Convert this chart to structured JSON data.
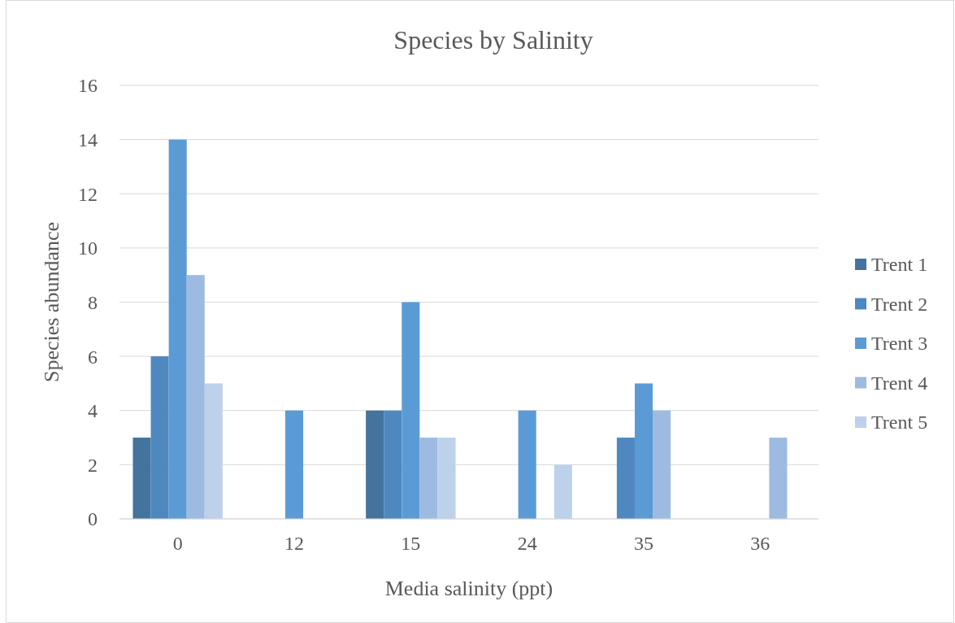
{
  "chart_data": {
    "type": "bar",
    "title": "Species by Salinity",
    "xlabel": "Media salinity (ppt)",
    "ylabel": "Species abundance",
    "categories": [
      "0",
      "12",
      "15",
      "24",
      "35",
      "36"
    ],
    "series": [
      {
        "name": "Trent 1",
        "color": "#44739e",
        "values": [
          3,
          0,
          4,
          0,
          0,
          0
        ]
      },
      {
        "name": "Trent 2",
        "color": "#4e88bf",
        "values": [
          6,
          0,
          4,
          0,
          3,
          0
        ]
      },
      {
        "name": "Trent 3",
        "color": "#5b9bd5",
        "values": [
          14,
          4,
          8,
          4,
          5,
          0
        ]
      },
      {
        "name": "Trent 4",
        "color": "#9dbbe0",
        "values": [
          9,
          0,
          3,
          0,
          4,
          3
        ]
      },
      {
        "name": "Trent 5",
        "color": "#bdd1eb",
        "values": [
          5,
          0,
          3,
          2,
          0,
          0
        ]
      }
    ],
    "ylim": [
      0,
      16
    ],
    "yticks": [
      0,
      2,
      4,
      6,
      8,
      10,
      12,
      14,
      16
    ],
    "grid": "y",
    "legend": "right"
  }
}
